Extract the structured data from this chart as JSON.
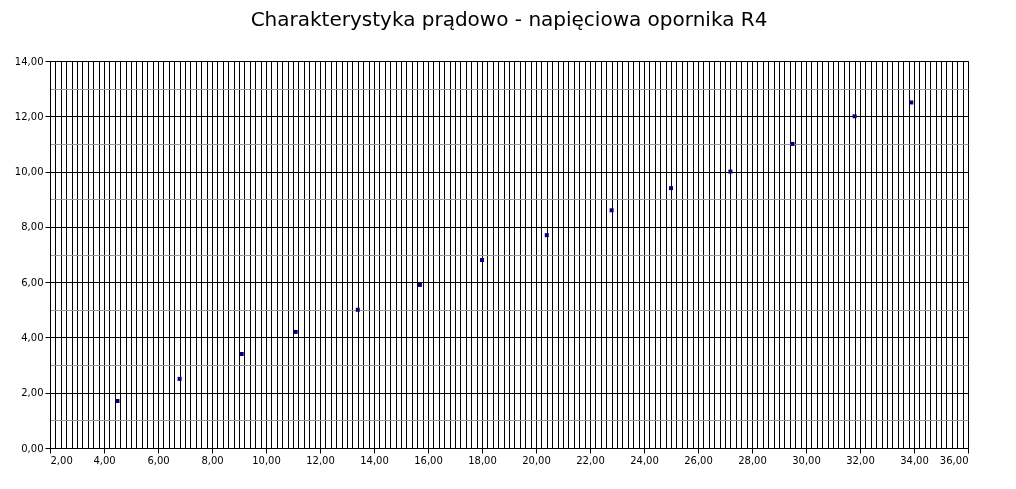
{
  "chart_data": {
    "type": "scatter",
    "title": "Charakterystyka prądowo - napięciowa opornika R4",
    "marker": "square",
    "grid": true,
    "series": [
      {
        "color": "#000080",
        "x": [
          4.5,
          6.8,
          9.1,
          11.1,
          13.4,
          15.7,
          18.0,
          20.4,
          22.8,
          25.0,
          27.2,
          29.5,
          31.8,
          33.9
        ],
        "values": [
          1.7,
          2.5,
          3.4,
          4.2,
          5.0,
          5.9,
          6.8,
          7.7,
          8.6,
          9.4,
          10.0,
          11.0,
          12.0,
          12.5
        ]
      }
    ],
    "xlim": [
      2,
      36
    ],
    "ylim": [
      0,
      14
    ],
    "xticks": [
      {
        "value": 2,
        "label": "2,00"
      },
      {
        "value": 2.2,
        "label": null
      },
      {
        "value": 2.4,
        "label": null
      },
      {
        "value": 2.6,
        "label": null
      },
      {
        "value": 2.8,
        "label": null
      },
      {
        "value": 3,
        "label": null
      },
      {
        "value": 3.2,
        "label": null
      },
      {
        "value": 3.4,
        "label": null
      },
      {
        "value": 3.6,
        "label": null
      },
      {
        "value": 3.8,
        "label": null
      },
      {
        "value": 4,
        "label": "4,00"
      },
      {
        "value": 4.2,
        "label": null
      },
      {
        "value": 4.4,
        "label": null
      },
      {
        "value": 4.6,
        "label": null
      },
      {
        "value": 4.8,
        "label": null
      },
      {
        "value": 5,
        "label": null
      },
      {
        "value": 5.2,
        "label": null
      },
      {
        "value": 5.4,
        "label": null
      },
      {
        "value": 5.6,
        "label": null
      },
      {
        "value": 5.8,
        "label": null
      },
      {
        "value": 6,
        "label": "6,00"
      },
      {
        "value": 6.2,
        "label": null
      },
      {
        "value": 6.4,
        "label": null
      },
      {
        "value": 6.6,
        "label": null
      },
      {
        "value": 6.8,
        "label": null
      },
      {
        "value": 7,
        "label": null
      },
      {
        "value": 7.2,
        "label": null
      },
      {
        "value": 7.4,
        "label": null
      },
      {
        "value": 7.6,
        "label": null
      },
      {
        "value": 7.8,
        "label": null
      },
      {
        "value": 8,
        "label": "8,00"
      },
      {
        "value": 8.2,
        "label": null
      },
      {
        "value": 8.4,
        "label": null
      },
      {
        "value": 8.6,
        "label": null
      },
      {
        "value": 8.8,
        "label": null
      },
      {
        "value": 9,
        "label": null
      },
      {
        "value": 9.2,
        "label": null
      },
      {
        "value": 9.4,
        "label": null
      },
      {
        "value": 9.6,
        "label": null
      },
      {
        "value": 9.8,
        "label": null
      },
      {
        "value": 10,
        "label": "10,00"
      },
      {
        "value": 10.2,
        "label": null
      },
      {
        "value": 10.4,
        "label": null
      },
      {
        "value": 10.6,
        "label": null
      },
      {
        "value": 10.8,
        "label": null
      },
      {
        "value": 11,
        "label": null
      },
      {
        "value": 11.2,
        "label": null
      },
      {
        "value": 11.4,
        "label": null
      },
      {
        "value": 11.6,
        "label": null
      },
      {
        "value": 11.8,
        "label": null
      },
      {
        "value": 12,
        "label": "12,00"
      },
      {
        "value": 12.2,
        "label": null
      },
      {
        "value": 12.4,
        "label": null
      },
      {
        "value": 12.6,
        "label": null
      },
      {
        "value": 12.8,
        "label": null
      },
      {
        "value": 13,
        "label": null
      },
      {
        "value": 13.2,
        "label": null
      },
      {
        "value": 13.4,
        "label": null
      },
      {
        "value": 13.6,
        "label": null
      },
      {
        "value": 13.8,
        "label": null
      },
      {
        "value": 14,
        "label": "14,00"
      },
      {
        "value": 14.2,
        "label": null
      },
      {
        "value": 14.4,
        "label": null
      },
      {
        "value": 14.6,
        "label": null
      },
      {
        "value": 14.8,
        "label": null
      },
      {
        "value": 15,
        "label": null
      },
      {
        "value": 15.2,
        "label": null
      },
      {
        "value": 15.4,
        "label": null
      },
      {
        "value": 15.6,
        "label": null
      },
      {
        "value": 15.8,
        "label": null
      },
      {
        "value": 16,
        "label": "16,00"
      },
      {
        "value": 16.2,
        "label": null
      },
      {
        "value": 16.4,
        "label": null
      },
      {
        "value": 16.6,
        "label": null
      },
      {
        "value": 16.8,
        "label": null
      },
      {
        "value": 17,
        "label": null
      },
      {
        "value": 17.2,
        "label": null
      },
      {
        "value": 17.4,
        "label": null
      },
      {
        "value": 17.6,
        "label": null
      },
      {
        "value": 17.8,
        "label": null
      },
      {
        "value": 18,
        "label": "18,00"
      },
      {
        "value": 18.2,
        "label": null
      },
      {
        "value": 18.4,
        "label": null
      },
      {
        "value": 18.6,
        "label": null
      },
      {
        "value": 18.8,
        "label": null
      },
      {
        "value": 19,
        "label": null
      },
      {
        "value": 19.2,
        "label": null
      },
      {
        "value": 19.4,
        "label": null
      },
      {
        "value": 19.6,
        "label": null
      },
      {
        "value": 19.8,
        "label": null
      },
      {
        "value": 20,
        "label": "20,00"
      },
      {
        "value": 20.2,
        "label": null
      },
      {
        "value": 20.4,
        "label": null
      },
      {
        "value": 20.6,
        "label": null
      },
      {
        "value": 20.8,
        "label": null
      },
      {
        "value": 21,
        "label": null
      },
      {
        "value": 21.2,
        "label": null
      },
      {
        "value": 21.4,
        "label": null
      },
      {
        "value": 21.6,
        "label": null
      },
      {
        "value": 21.8,
        "label": null
      },
      {
        "value": 22,
        "label": "22,00"
      },
      {
        "value": 22.2,
        "label": null
      },
      {
        "value": 22.4,
        "label": null
      },
      {
        "value": 22.6,
        "label": null
      },
      {
        "value": 22.8,
        "label": null
      },
      {
        "value": 23,
        "label": null
      },
      {
        "value": 23.2,
        "label": null
      },
      {
        "value": 23.4,
        "label": null
      },
      {
        "value": 23.6,
        "label": null
      },
      {
        "value": 23.8,
        "label": null
      },
      {
        "value": 24,
        "label": "24,00"
      },
      {
        "value": 24.2,
        "label": null
      },
      {
        "value": 24.4,
        "label": null
      },
      {
        "value": 24.6,
        "label": null
      },
      {
        "value": 24.8,
        "label": null
      },
      {
        "value": 25,
        "label": null
      },
      {
        "value": 25.2,
        "label": null
      },
      {
        "value": 25.4,
        "label": null
      },
      {
        "value": 25.6,
        "label": null
      },
      {
        "value": 25.8,
        "label": null
      },
      {
        "value": 26,
        "label": "26,00"
      },
      {
        "value": 26.2,
        "label": null
      },
      {
        "value": 26.4,
        "label": null
      },
      {
        "value": 26.6,
        "label": null
      },
      {
        "value": 26.8,
        "label": null
      },
      {
        "value": 27,
        "label": null
      },
      {
        "value": 27.2,
        "label": null
      },
      {
        "value": 27.4,
        "label": null
      },
      {
        "value": 27.6,
        "label": null
      },
      {
        "value": 27.8,
        "label": null
      },
      {
        "value": 28,
        "label": "28,00"
      },
      {
        "value": 28.2,
        "label": null
      },
      {
        "value": 28.4,
        "label": null
      },
      {
        "value": 28.6,
        "label": null
      },
      {
        "value": 28.8,
        "label": null
      },
      {
        "value": 29,
        "label": null
      },
      {
        "value": 29.2,
        "label": null
      },
      {
        "value": 29.4,
        "label": null
      },
      {
        "value": 29.6,
        "label": null
      },
      {
        "value": 29.8,
        "label": null
      },
      {
        "value": 30,
        "label": "30,00"
      },
      {
        "value": 30.2,
        "label": null
      },
      {
        "value": 30.4,
        "label": null
      },
      {
        "value": 30.6,
        "label": null
      },
      {
        "value": 30.8,
        "label": null
      },
      {
        "value": 31,
        "label": null
      },
      {
        "value": 31.2,
        "label": null
      },
      {
        "value": 31.4,
        "label": null
      },
      {
        "value": 31.6,
        "label": null
      },
      {
        "value": 31.8,
        "label": null
      },
      {
        "value": 32,
        "label": "32,00"
      },
      {
        "value": 32.2,
        "label": null
      },
      {
        "value": 32.4,
        "label": null
      },
      {
        "value": 32.6,
        "label": null
      },
      {
        "value": 32.8,
        "label": null
      },
      {
        "value": 33,
        "label": null
      },
      {
        "value": 33.2,
        "label": null
      },
      {
        "value": 33.4,
        "label": null
      },
      {
        "value": 33.6,
        "label": null
      },
      {
        "value": 33.8,
        "label": null
      },
      {
        "value": 34,
        "label": "34,00"
      },
      {
        "value": 34.2,
        "label": null
      },
      {
        "value": 34.4,
        "label": null
      },
      {
        "value": 34.6,
        "label": null
      },
      {
        "value": 34.8,
        "label": null
      },
      {
        "value": 35,
        "label": null
      },
      {
        "value": 35.2,
        "label": null
      },
      {
        "value": 35.4,
        "label": null
      },
      {
        "value": 35.6,
        "label": null
      },
      {
        "value": 35.8,
        "label": null
      },
      {
        "value": 36,
        "label": "36,00"
      }
    ],
    "yticks": [
      {
        "value": 0,
        "label": "0,00"
      },
      {
        "value": 1,
        "label": null
      },
      {
        "value": 2,
        "label": "2,00"
      },
      {
        "value": 3,
        "label": null
      },
      {
        "value": 4,
        "label": "4,00"
      },
      {
        "value": 5,
        "label": null
      },
      {
        "value": 6,
        "label": "6,00"
      },
      {
        "value": 7,
        "label": null
      },
      {
        "value": 8,
        "label": "8,00"
      },
      {
        "value": 9,
        "label": null
      },
      {
        "value": 10,
        "label": "10,00"
      },
      {
        "value": 11,
        "label": null
      },
      {
        "value": 12,
        "label": "12,00"
      },
      {
        "value": 13,
        "label": null
      },
      {
        "value": 14,
        "label": "14,00"
      }
    ]
  }
}
